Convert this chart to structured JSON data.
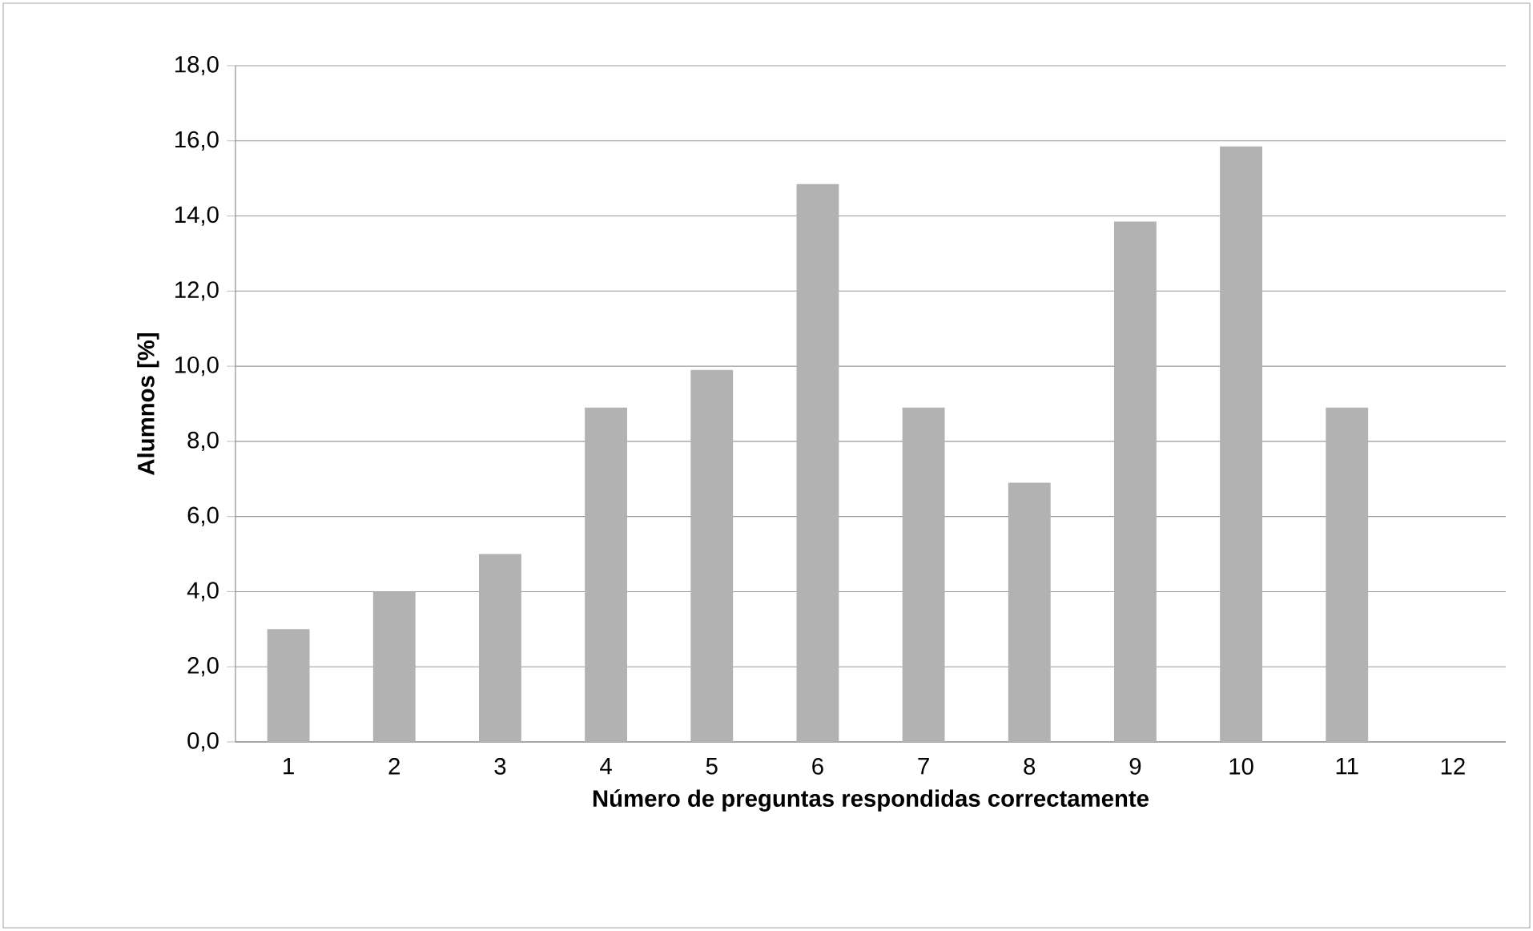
{
  "chart_data": {
    "type": "bar",
    "xlabel": "Número de preguntas respondidas correctamente",
    "ylabel": "Alumnos [%]",
    "categories": [
      "1",
      "2",
      "3",
      "4",
      "5",
      "6",
      "7",
      "8",
      "9",
      "10",
      "11",
      "12"
    ],
    "values": [
      3.0,
      4.0,
      5.0,
      8.9,
      9.9,
      14.85,
      8.9,
      6.9,
      13.85,
      15.85,
      8.9,
      0
    ],
    "color": "#b2b2b2",
    "ylim": [
      0,
      18
    ],
    "yticks": [
      {
        "value": 0,
        "label": "0,0"
      },
      {
        "value": 2,
        "label": "2,0"
      },
      {
        "value": 4,
        "label": "4,0"
      },
      {
        "value": 6,
        "label": "6,0"
      },
      {
        "value": 8,
        "label": "8,0"
      },
      {
        "value": 10,
        "label": "10,0"
      },
      {
        "value": 12,
        "label": "12,0"
      },
      {
        "value": 14,
        "label": "14,0"
      },
      {
        "value": 16,
        "label": "16,0"
      },
      {
        "value": 18,
        "label": "18,0"
      }
    ],
    "grid": "y"
  }
}
